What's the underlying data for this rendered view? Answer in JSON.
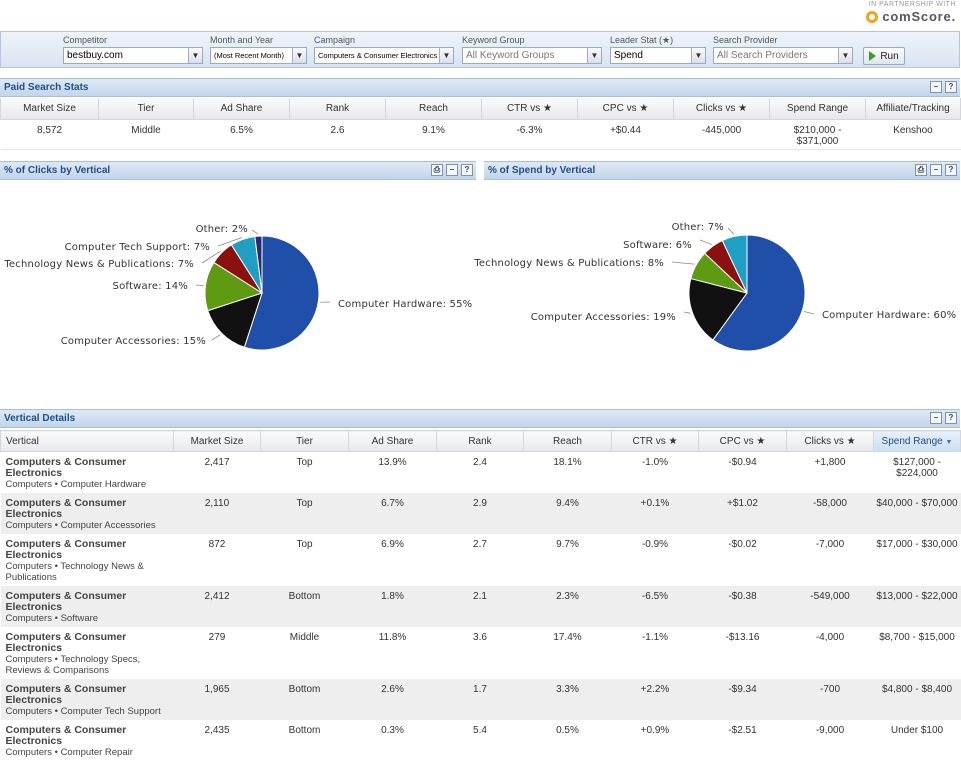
{
  "partner": {
    "tagline": "IN PARTNERSHIP WITH",
    "brand": "comScore."
  },
  "filters": {
    "competitor": {
      "label": "Competitor",
      "value": "bestbuy.com"
    },
    "month": {
      "label": "Month and Year",
      "value": "(Most Recent Month)"
    },
    "campaign": {
      "label": "Campaign",
      "value": "Computers & Consumer Electronics"
    },
    "keyword_group": {
      "label": "Keyword Group",
      "value": "All Keyword Groups"
    },
    "leader_stat": {
      "label": "Leader Stat (★)",
      "value": "Spend"
    },
    "search_provider": {
      "label": "Search Provider",
      "value": "All Search Providers"
    },
    "run_label": "Run"
  },
  "paid_search": {
    "title": "Paid Search Stats",
    "headers": [
      "Market Size",
      "Tier",
      "Ad Share",
      "Rank",
      "Reach",
      "CTR vs ★",
      "CPC vs ★",
      "Clicks vs ★",
      "Spend Range",
      "Affiliate/Tracking"
    ],
    "row": {
      "market_size": "8,572",
      "tier": "Middle",
      "ad_share": "6.5%",
      "rank": "2.6",
      "reach": "9.1%",
      "ctr": "-6.3%",
      "cpc": "+$0.44",
      "clicks": "-445,000",
      "spend_range_line1": "$210,000 -",
      "spend_range_line2": "$371,000",
      "affiliate": "Kenshoo"
    }
  },
  "clicks_panel": {
    "title": "% of Clicks by Vertical"
  },
  "spend_panel": {
    "title": "% of Spend by Vertical"
  },
  "chart_data": [
    {
      "type": "pie",
      "title": "% of Clicks by Vertical",
      "labels": [
        "Computer Hardware",
        "Computer Accessories",
        "Software",
        "Technology News & Publications",
        "Computer Tech Support",
        "Other"
      ],
      "values": [
        55,
        15,
        14,
        7,
        7,
        2
      ],
      "label_text": [
        "Computer Hardware: 55%",
        "Computer Accessories: 15%",
        "Software: 14%",
        "Technology News & Publications: 7%",
        "Computer Tech Support: 7%",
        "Other: 2%"
      ],
      "colors": [
        "#1f4fa8",
        "#111111",
        "#5e9a12",
        "#8b1010",
        "#1f9fc4",
        "#2a2a6a"
      ]
    },
    {
      "type": "pie",
      "title": "% of Spend by Vertical",
      "labels": [
        "Computer Hardware",
        "Computer Accessories",
        "Technology News & Publications",
        "Software",
        "Other"
      ],
      "values": [
        60,
        19,
        8,
        6,
        7
      ],
      "label_text": [
        "Computer Hardware: 60%",
        "Computer Accessories: 19%",
        "Technology News & Publications: 8%",
        "Software: 6%",
        "Other: 7%"
      ],
      "colors": [
        "#1f4fa8",
        "#111111",
        "#5e9a12",
        "#8b1010",
        "#1f9fc4"
      ]
    }
  ],
  "vertical_details": {
    "title": "Vertical Details",
    "headers": [
      "Vertical",
      "Market Size",
      "Tier",
      "Ad Share",
      "Rank",
      "Reach",
      "CTR vs ★",
      "CPC vs ★",
      "Clicks vs ★",
      "Spend Range"
    ],
    "sort_indicator": "▼",
    "rows": [
      {
        "main": "Computers & Consumer Electronics",
        "sub": "Computers • Computer Hardware",
        "market_size": "2,417",
        "tier": "Top",
        "ad_share": "13.9%",
        "rank": "2.4",
        "reach": "18.1%",
        "ctr": "-1.0%",
        "cpc": "-$0.94",
        "clicks": "+1,800",
        "spend": "$127,000 - $224,000"
      },
      {
        "main": "Computers & Consumer Electronics",
        "sub": "Computers • Computer Accessories",
        "market_size": "2,110",
        "tier": "Top",
        "ad_share": "6.7%",
        "rank": "2.9",
        "reach": "9.4%",
        "ctr": "+0.1%",
        "cpc": "+$1.02",
        "clicks": "-58,000",
        "spend": "$40,000 - $70,000"
      },
      {
        "main": "Computers & Consumer Electronics",
        "sub": "Computers • Technology News & Publications",
        "market_size": "872",
        "tier": "Top",
        "ad_share": "6.9%",
        "rank": "2.7",
        "reach": "9.7%",
        "ctr": "-0.9%",
        "cpc": "-$0.02",
        "clicks": "-7,000",
        "spend": "$17,000 - $30,000"
      },
      {
        "main": "Computers & Consumer Electronics",
        "sub": "Computers • Software",
        "market_size": "2,412",
        "tier": "Bottom",
        "ad_share": "1.8%",
        "rank": "2.1",
        "reach": "2.3%",
        "ctr": "-6.5%",
        "cpc": "-$0.38",
        "clicks": "-549,000",
        "spend": "$13,000 - $22,000"
      },
      {
        "main": "Computers & Consumer Electronics",
        "sub": "Computers • Technology Specs, Reviews & Comparisons",
        "market_size": "279",
        "tier": "Middle",
        "ad_share": "11.8%",
        "rank": "3.6",
        "reach": "17.4%",
        "ctr": "-1.1%",
        "cpc": "-$13.16",
        "clicks": "-4,000",
        "spend": "$8,700 - $15,000"
      },
      {
        "main": "Computers & Consumer Electronics",
        "sub": "Computers • Computer Tech Support",
        "market_size": "1,965",
        "tier": "Bottom",
        "ad_share": "2.6%",
        "rank": "1.7",
        "reach": "3.3%",
        "ctr": "+2.2%",
        "cpc": "-$9.34",
        "clicks": "-700",
        "spend": "$4,800 - $8,400"
      },
      {
        "main": "Computers & Consumer Electronics",
        "sub": "Computers • Computer Repair",
        "market_size": "2,435",
        "tier": "Bottom",
        "ad_share": "0.3%",
        "rank": "5.4",
        "reach": "0.5%",
        "ctr": "+0.9%",
        "cpc": "-$2.51",
        "clicks": "-9,000",
        "spend": "Under $100"
      }
    ]
  }
}
